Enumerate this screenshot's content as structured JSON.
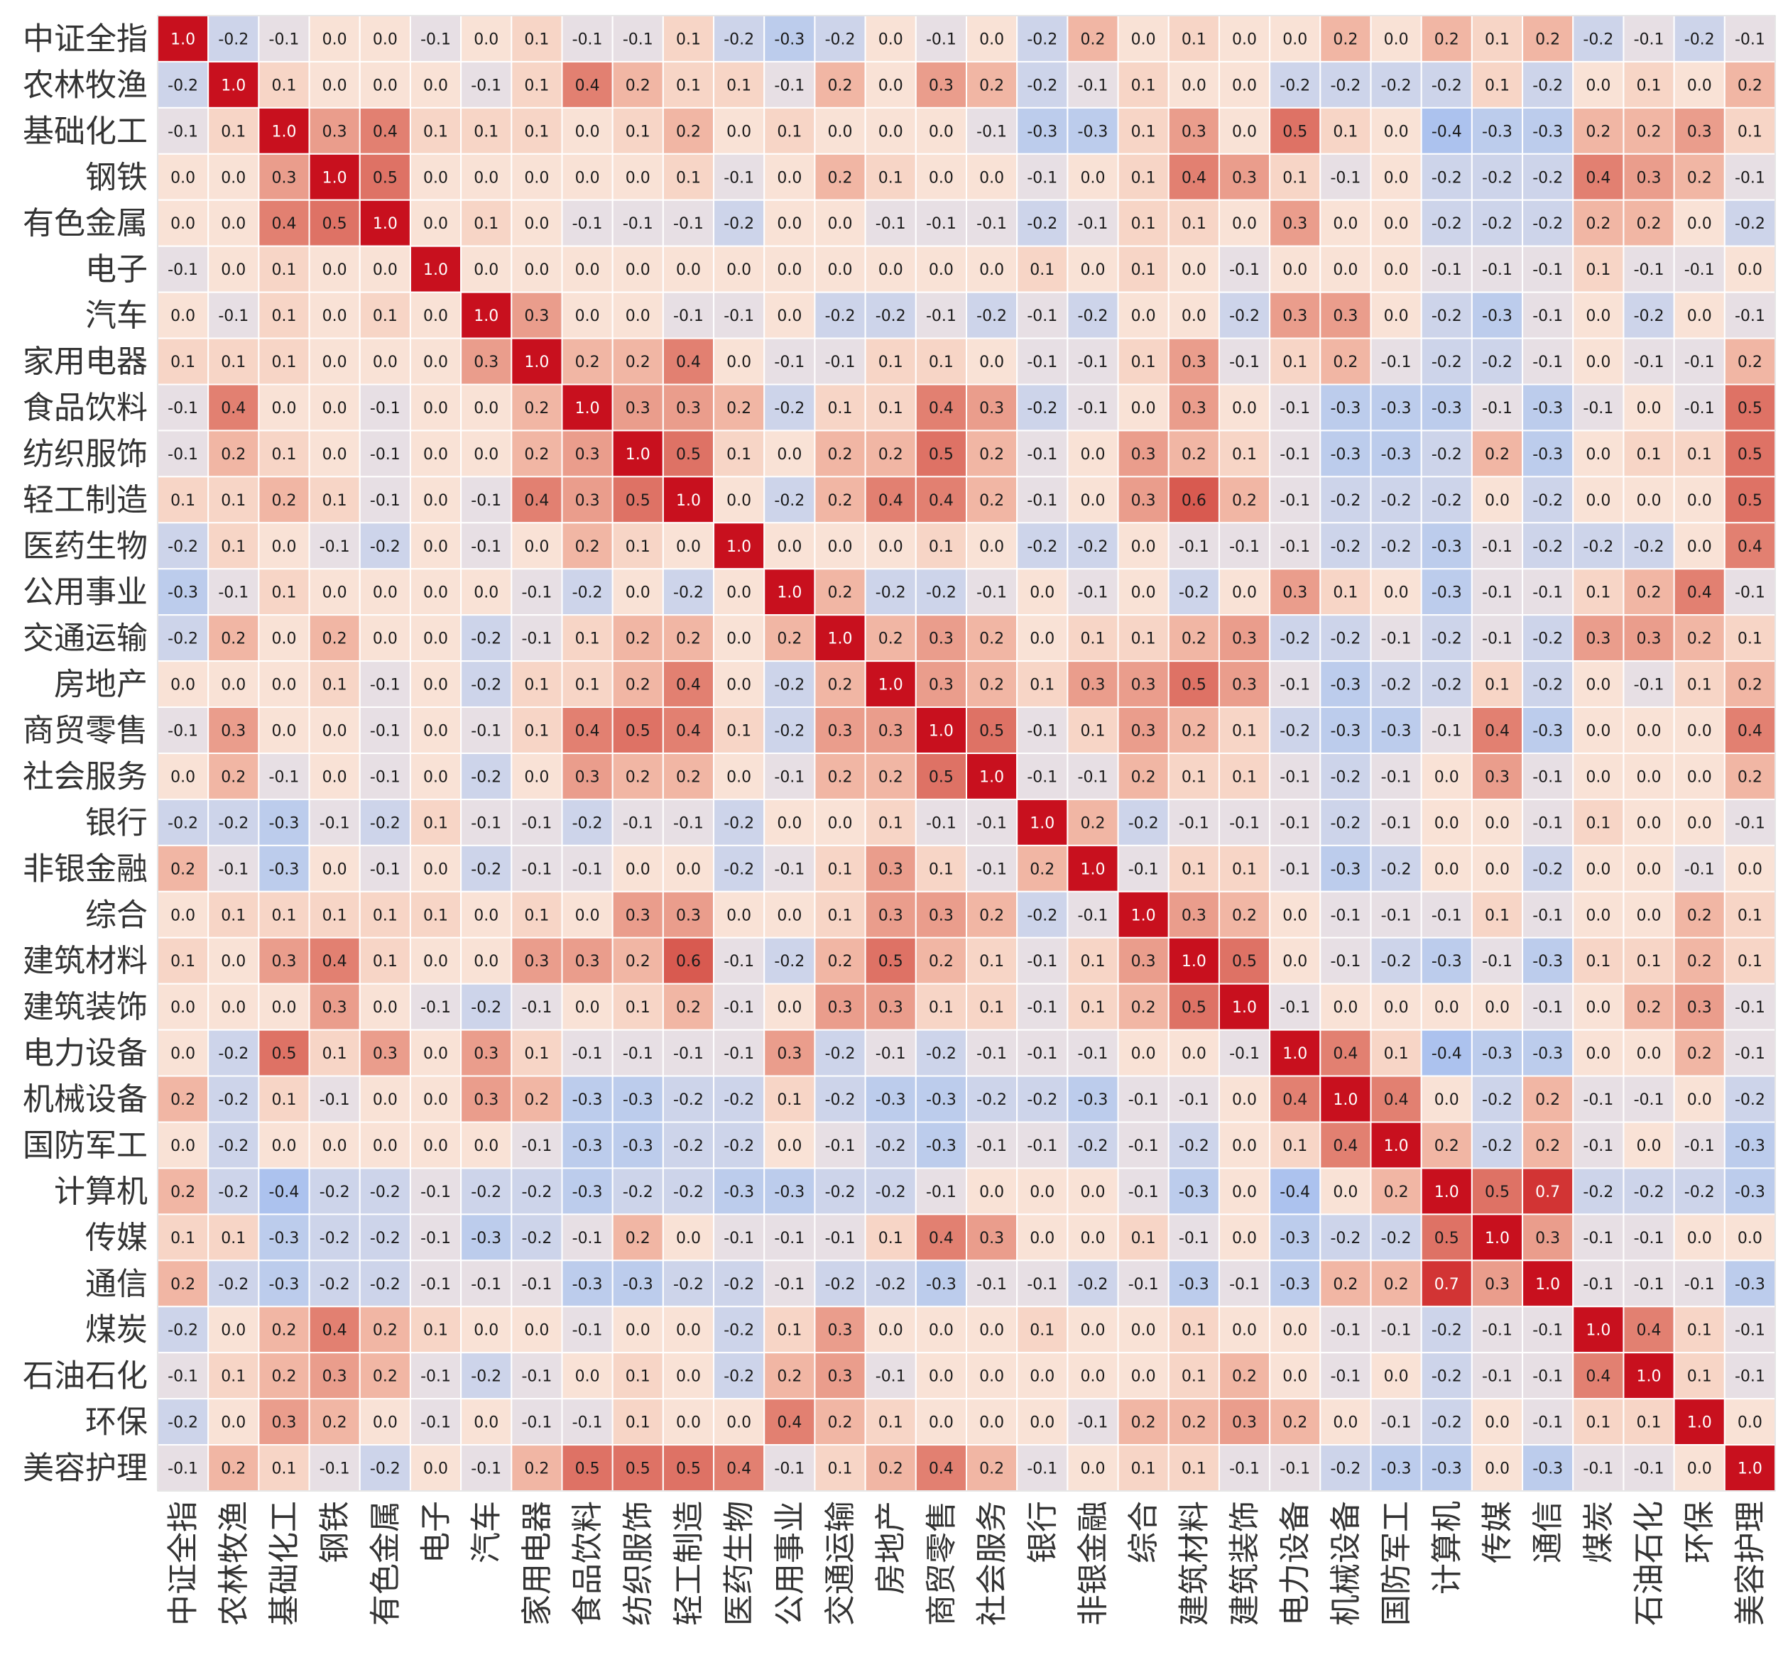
{
  "chart_data": {
    "type": "heatmap",
    "title": "",
    "xlabel": "",
    "ylabel": "",
    "colormap": "coolwarm",
    "vmin": -1.0,
    "vmax": 1.0,
    "grid": true,
    "annotations": true,
    "annotation_format": "0.0",
    "labels": [
      "中证全指",
      "农林牧渔",
      "基础化工",
      "钢铁",
      "有色金属",
      "电子",
      "汽车",
      "家用电器",
      "食品饮料",
      "纺织服饰",
      "轻工制造",
      "医药生物",
      "公用事业",
      "交通运输",
      "房地产",
      "商贸零售",
      "社会服务",
      "银行",
      "非银金融",
      "综合",
      "建筑材料",
      "建筑装饰",
      "电力设备",
      "机械设备",
      "国防军工",
      "计算机",
      "传媒",
      "通信",
      "煤炭",
      "石油石化",
      "环保",
      "美容护理"
    ],
    "values": [
      [
        1.0,
        -0.2,
        -0.1,
        0.0,
        0.0,
        -0.1,
        0.0,
        0.1,
        -0.1,
        -0.1,
        0.1,
        -0.2,
        -0.3,
        -0.2,
        0.0,
        -0.1,
        0.0,
        -0.2,
        0.2,
        0.0,
        0.1,
        0.0,
        0.0,
        0.2,
        0.0,
        0.2,
        0.1,
        0.2,
        -0.2,
        -0.1,
        -0.2,
        -0.1
      ],
      [
        -0.2,
        1.0,
        0.1,
        0.0,
        0.0,
        0.0,
        -0.1,
        0.1,
        0.4,
        0.2,
        0.1,
        0.1,
        -0.1,
        0.2,
        0.0,
        0.3,
        0.2,
        -0.2,
        -0.1,
        0.1,
        0.0,
        0.0,
        -0.2,
        -0.2,
        -0.2,
        -0.2,
        0.1,
        -0.2,
        0.0,
        0.1,
        0.0,
        0.2
      ],
      [
        -0.1,
        0.1,
        1.0,
        0.3,
        0.4,
        0.1,
        0.1,
        0.1,
        0.0,
        0.1,
        0.2,
        0.0,
        0.1,
        0.0,
        0.0,
        0.0,
        -0.1,
        -0.3,
        -0.3,
        0.1,
        0.3,
        0.0,
        0.5,
        0.1,
        0.0,
        -0.4,
        -0.3,
        -0.3,
        0.2,
        0.2,
        0.3,
        0.1
      ],
      [
        0.0,
        0.0,
        0.3,
        1.0,
        0.5,
        0.0,
        0.0,
        0.0,
        0.0,
        0.0,
        0.1,
        -0.1,
        0.0,
        0.2,
        0.1,
        0.0,
        0.0,
        -0.1,
        0.0,
        0.1,
        0.4,
        0.3,
        0.1,
        -0.1,
        0.0,
        -0.2,
        -0.2,
        -0.2,
        0.4,
        0.3,
        0.2,
        -0.1
      ],
      [
        0.0,
        0.0,
        0.4,
        0.5,
        1.0,
        0.0,
        0.1,
        0.0,
        -0.1,
        -0.1,
        -0.1,
        -0.2,
        0.0,
        0.0,
        -0.1,
        -0.1,
        -0.1,
        -0.2,
        -0.1,
        0.1,
        0.1,
        0.0,
        0.3,
        0.0,
        0.0,
        -0.2,
        -0.2,
        -0.2,
        0.2,
        0.2,
        0.0,
        -0.2
      ],
      [
        -0.1,
        0.0,
        0.1,
        0.0,
        0.0,
        1.0,
        0.0,
        0.0,
        0.0,
        0.0,
        0.0,
        0.0,
        0.0,
        0.0,
        0.0,
        0.0,
        0.0,
        0.1,
        0.0,
        0.1,
        0.0,
        -0.1,
        0.0,
        0.0,
        0.0,
        -0.1,
        -0.1,
        -0.1,
        0.1,
        -0.1,
        -0.1,
        0.0
      ],
      [
        0.0,
        -0.1,
        0.1,
        0.0,
        0.1,
        0.0,
        1.0,
        0.3,
        0.0,
        0.0,
        -0.1,
        -0.1,
        0.0,
        -0.2,
        -0.2,
        -0.1,
        -0.2,
        -0.1,
        -0.2,
        0.0,
        0.0,
        -0.2,
        0.3,
        0.3,
        0.0,
        -0.2,
        -0.3,
        -0.1,
        0.0,
        -0.2,
        0.0,
        -0.1
      ],
      [
        0.1,
        0.1,
        0.1,
        0.0,
        0.0,
        0.0,
        0.3,
        1.0,
        0.2,
        0.2,
        0.4,
        0.0,
        -0.1,
        -0.1,
        0.1,
        0.1,
        0.0,
        -0.1,
        -0.1,
        0.1,
        0.3,
        -0.1,
        0.1,
        0.2,
        -0.1,
        -0.2,
        -0.2,
        -0.1,
        0.0,
        -0.1,
        -0.1,
        0.2
      ],
      [
        -0.1,
        0.4,
        0.0,
        0.0,
        -0.1,
        0.0,
        0.0,
        0.2,
        1.0,
        0.3,
        0.3,
        0.2,
        -0.2,
        0.1,
        0.1,
        0.4,
        0.3,
        -0.2,
        -0.1,
        0.0,
        0.3,
        0.0,
        -0.1,
        -0.3,
        -0.3,
        -0.3,
        -0.1,
        -0.3,
        -0.1,
        0.0,
        -0.1,
        0.5
      ],
      [
        -0.1,
        0.2,
        0.1,
        0.0,
        -0.1,
        0.0,
        0.0,
        0.2,
        0.3,
        1.0,
        0.5,
        0.1,
        0.0,
        0.2,
        0.2,
        0.5,
        0.2,
        -0.1,
        0.0,
        0.3,
        0.2,
        0.1,
        -0.1,
        -0.3,
        -0.3,
        -0.2,
        0.2,
        -0.3,
        0.0,
        0.1,
        0.1,
        0.5
      ],
      [
        0.1,
        0.1,
        0.2,
        0.1,
        -0.1,
        0.0,
        -0.1,
        0.4,
        0.3,
        0.5,
        1.0,
        0.0,
        -0.2,
        0.2,
        0.4,
        0.4,
        0.2,
        -0.1,
        0.0,
        0.3,
        0.6,
        0.2,
        -0.1,
        -0.2,
        -0.2,
        -0.2,
        0.0,
        -0.2,
        0.0,
        0.0,
        0.0,
        0.5
      ],
      [
        -0.2,
        0.1,
        0.0,
        -0.1,
        -0.2,
        0.0,
        -0.1,
        0.0,
        0.2,
        0.1,
        0.0,
        1.0,
        0.0,
        0.0,
        0.0,
        0.1,
        0.0,
        -0.2,
        -0.2,
        0.0,
        -0.1,
        -0.1,
        -0.1,
        -0.2,
        -0.2,
        -0.3,
        -0.1,
        -0.2,
        -0.2,
        -0.2,
        0.0,
        0.4
      ],
      [
        -0.3,
        -0.1,
        0.1,
        0.0,
        0.0,
        0.0,
        0.0,
        -0.1,
        -0.2,
        0.0,
        -0.2,
        0.0,
        1.0,
        0.2,
        -0.2,
        -0.2,
        -0.1,
        0.0,
        -0.1,
        0.0,
        -0.2,
        0.0,
        0.3,
        0.1,
        0.0,
        -0.3,
        -0.1,
        -0.1,
        0.1,
        0.2,
        0.4,
        -0.1
      ],
      [
        -0.2,
        0.2,
        0.0,
        0.2,
        0.0,
        0.0,
        -0.2,
        -0.1,
        0.1,
        0.2,
        0.2,
        0.0,
        0.2,
        1.0,
        0.2,
        0.3,
        0.2,
        0.0,
        0.1,
        0.1,
        0.2,
        0.3,
        -0.2,
        -0.2,
        -0.1,
        -0.2,
        -0.1,
        -0.2,
        0.3,
        0.3,
        0.2,
        0.1
      ],
      [
        0.0,
        0.0,
        0.0,
        0.1,
        -0.1,
        0.0,
        -0.2,
        0.1,
        0.1,
        0.2,
        0.4,
        0.0,
        -0.2,
        0.2,
        1.0,
        0.3,
        0.2,
        0.1,
        0.3,
        0.3,
        0.5,
        0.3,
        -0.1,
        -0.3,
        -0.2,
        -0.2,
        0.1,
        -0.2,
        0.0,
        -0.1,
        0.1,
        0.2
      ],
      [
        -0.1,
        0.3,
        0.0,
        0.0,
        -0.1,
        0.0,
        -0.1,
        0.1,
        0.4,
        0.5,
        0.4,
        0.1,
        -0.2,
        0.3,
        0.3,
        1.0,
        0.5,
        -0.1,
        0.1,
        0.3,
        0.2,
        0.1,
        -0.2,
        -0.3,
        -0.3,
        -0.1,
        0.4,
        -0.3,
        0.0,
        0.0,
        0.0,
        0.4
      ],
      [
        0.0,
        0.2,
        -0.1,
        0.0,
        -0.1,
        0.0,
        -0.2,
        0.0,
        0.3,
        0.2,
        0.2,
        0.0,
        -0.1,
        0.2,
        0.2,
        0.5,
        1.0,
        -0.1,
        -0.1,
        0.2,
        0.1,
        0.1,
        -0.1,
        -0.2,
        -0.1,
        0.0,
        0.3,
        -0.1,
        0.0,
        0.0,
        0.0,
        0.2
      ],
      [
        -0.2,
        -0.2,
        -0.3,
        -0.1,
        -0.2,
        0.1,
        -0.1,
        -0.1,
        -0.2,
        -0.1,
        -0.1,
        -0.2,
        0.0,
        0.0,
        0.1,
        -0.1,
        -0.1,
        1.0,
        0.2,
        -0.2,
        -0.1,
        -0.1,
        -0.1,
        -0.2,
        -0.1,
        0.0,
        0.0,
        -0.1,
        0.1,
        0.0,
        0.0,
        -0.1
      ],
      [
        0.2,
        -0.1,
        -0.3,
        0.0,
        -0.1,
        0.0,
        -0.2,
        -0.1,
        -0.1,
        0.0,
        0.0,
        -0.2,
        -0.1,
        0.1,
        0.3,
        0.1,
        -0.1,
        0.2,
        1.0,
        -0.1,
        0.1,
        0.1,
        -0.1,
        -0.3,
        -0.2,
        0.0,
        0.0,
        -0.2,
        0.0,
        0.0,
        -0.1,
        0.0
      ],
      [
        0.0,
        0.1,
        0.1,
        0.1,
        0.1,
        0.1,
        0.0,
        0.1,
        0.0,
        0.3,
        0.3,
        0.0,
        0.0,
        0.1,
        0.3,
        0.3,
        0.2,
        -0.2,
        -0.1,
        1.0,
        0.3,
        0.2,
        0.0,
        -0.1,
        -0.1,
        -0.1,
        0.1,
        -0.1,
        0.0,
        0.0,
        0.2,
        0.1
      ],
      [
        0.1,
        0.0,
        0.3,
        0.4,
        0.1,
        0.0,
        0.0,
        0.3,
        0.3,
        0.2,
        0.6,
        -0.1,
        -0.2,
        0.2,
        0.5,
        0.2,
        0.1,
        -0.1,
        0.1,
        0.3,
        1.0,
        0.5,
        0.0,
        -0.1,
        -0.2,
        -0.3,
        -0.1,
        -0.3,
        0.1,
        0.1,
        0.2,
        0.1
      ],
      [
        0.0,
        0.0,
        0.0,
        0.3,
        0.0,
        -0.1,
        -0.2,
        -0.1,
        0.0,
        0.1,
        0.2,
        -0.1,
        0.0,
        0.3,
        0.3,
        0.1,
        0.1,
        -0.1,
        0.1,
        0.2,
        0.5,
        1.0,
        -0.1,
        0.0,
        0.0,
        0.0,
        0.0,
        -0.1,
        0.0,
        0.2,
        0.3,
        -0.1
      ],
      [
        0.0,
        -0.2,
        0.5,
        0.1,
        0.3,
        0.0,
        0.3,
        0.1,
        -0.1,
        -0.1,
        -0.1,
        -0.1,
        0.3,
        -0.2,
        -0.1,
        -0.2,
        -0.1,
        -0.1,
        -0.1,
        0.0,
        0.0,
        -0.1,
        1.0,
        0.4,
        0.1,
        -0.4,
        -0.3,
        -0.3,
        0.0,
        0.0,
        0.2,
        -0.1
      ],
      [
        0.2,
        -0.2,
        0.1,
        -0.1,
        0.0,
        0.0,
        0.3,
        0.2,
        -0.3,
        -0.3,
        -0.2,
        -0.2,
        0.1,
        -0.2,
        -0.3,
        -0.3,
        -0.2,
        -0.2,
        -0.3,
        -0.1,
        -0.1,
        0.0,
        0.4,
        1.0,
        0.4,
        0.0,
        -0.2,
        0.2,
        -0.1,
        -0.1,
        0.0,
        -0.2
      ],
      [
        0.0,
        -0.2,
        0.0,
        0.0,
        0.0,
        0.0,
        0.0,
        -0.1,
        -0.3,
        -0.3,
        -0.2,
        -0.2,
        0.0,
        -0.1,
        -0.2,
        -0.3,
        -0.1,
        -0.1,
        -0.2,
        -0.1,
        -0.2,
        0.0,
        0.1,
        0.4,
        1.0,
        0.2,
        -0.2,
        0.2,
        -0.1,
        0.0,
        -0.1,
        -0.3
      ],
      [
        0.2,
        -0.2,
        -0.4,
        -0.2,
        -0.2,
        -0.1,
        -0.2,
        -0.2,
        -0.3,
        -0.2,
        -0.2,
        -0.3,
        -0.3,
        -0.2,
        -0.2,
        -0.1,
        0.0,
        0.0,
        0.0,
        -0.1,
        -0.3,
        0.0,
        -0.4,
        0.0,
        0.2,
        1.0,
        0.5,
        0.7,
        -0.2,
        -0.2,
        -0.2,
        -0.3
      ],
      [
        0.1,
        0.1,
        -0.3,
        -0.2,
        -0.2,
        -0.1,
        -0.3,
        -0.2,
        -0.1,
        0.2,
        0.0,
        -0.1,
        -0.1,
        -0.1,
        0.1,
        0.4,
        0.3,
        0.0,
        0.0,
        0.1,
        -0.1,
        0.0,
        -0.3,
        -0.2,
        -0.2,
        0.5,
        1.0,
        0.3,
        -0.1,
        -0.1,
        0.0,
        0.0
      ],
      [
        0.2,
        -0.2,
        -0.3,
        -0.2,
        -0.2,
        -0.1,
        -0.1,
        -0.1,
        -0.3,
        -0.3,
        -0.2,
        -0.2,
        -0.1,
        -0.2,
        -0.2,
        -0.3,
        -0.1,
        -0.1,
        -0.2,
        -0.1,
        -0.3,
        -0.1,
        -0.3,
        0.2,
        0.2,
        0.7,
        0.3,
        1.0,
        -0.1,
        -0.1,
        -0.1,
        -0.3
      ],
      [
        -0.2,
        0.0,
        0.2,
        0.4,
        0.2,
        0.1,
        0.0,
        0.0,
        -0.1,
        0.0,
        0.0,
        -0.2,
        0.1,
        0.3,
        0.0,
        0.0,
        0.0,
        0.1,
        0.0,
        0.0,
        0.1,
        0.0,
        0.0,
        -0.1,
        -0.1,
        -0.2,
        -0.1,
        -0.1,
        1.0,
        0.4,
        0.1,
        -0.1
      ],
      [
        -0.1,
        0.1,
        0.2,
        0.3,
        0.2,
        -0.1,
        -0.2,
        -0.1,
        0.0,
        0.1,
        0.0,
        -0.2,
        0.2,
        0.3,
        -0.1,
        0.0,
        0.0,
        0.0,
        0.0,
        0.0,
        0.1,
        0.2,
        0.0,
        -0.1,
        0.0,
        -0.2,
        -0.1,
        -0.1,
        0.4,
        1.0,
        0.1,
        -0.1
      ],
      [
        -0.2,
        0.0,
        0.3,
        0.2,
        0.0,
        -0.1,
        0.0,
        -0.1,
        -0.1,
        0.1,
        0.0,
        0.0,
        0.4,
        0.2,
        0.1,
        0.0,
        0.0,
        0.0,
        -0.1,
        0.2,
        0.2,
        0.3,
        0.2,
        0.0,
        -0.1,
        -0.2,
        0.0,
        -0.1,
        0.1,
        0.1,
        1.0,
        0.0
      ],
      [
        -0.1,
        0.2,
        0.1,
        -0.1,
        -0.2,
        0.0,
        -0.1,
        0.2,
        0.5,
        0.5,
        0.5,
        0.4,
        -0.1,
        0.1,
        0.2,
        0.4,
        0.2,
        -0.1,
        0.0,
        0.1,
        0.1,
        -0.1,
        -0.1,
        -0.2,
        -0.3,
        -0.3,
        0.0,
        -0.3,
        -0.1,
        -0.1,
        0.0,
        1.0
      ]
    ]
  }
}
